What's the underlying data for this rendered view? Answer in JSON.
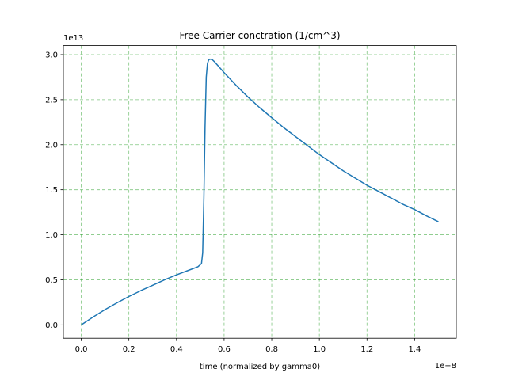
{
  "chart_data": {
    "type": "line",
    "title": "Free Carrier conctration (1/cm^3)",
    "xlabel": "time (normalized by gamma0)",
    "ylabel": "",
    "x_offset_text": "1e−8",
    "y_offset_text": "1e13",
    "x_scale": 1e-08,
    "y_scale": 10000000000000.0,
    "xlim": [
      -0.075,
      1.575
    ],
    "ylim": [
      -0.148,
      3.1
    ],
    "xticks": [
      0.0,
      0.2,
      0.4,
      0.6,
      0.8,
      1.0,
      1.2,
      1.4
    ],
    "xtick_labels": [
      "0.0",
      "0.2",
      "0.4",
      "0.6",
      "0.8",
      "1.0",
      "1.2",
      "1.4"
    ],
    "yticks": [
      0.0,
      0.5,
      1.0,
      1.5,
      2.0,
      2.5,
      3.0
    ],
    "ytick_labels": [
      "0.0",
      "0.5",
      "1.0",
      "1.5",
      "2.0",
      "2.5",
      "3.0"
    ],
    "grid": true,
    "grid_color": "#2ca02c",
    "series": [
      {
        "color": "#1f77b4",
        "x": [
          0.0,
          0.05,
          0.1,
          0.15,
          0.2,
          0.25,
          0.3,
          0.35,
          0.4,
          0.45,
          0.49,
          0.505,
          0.51,
          0.515,
          0.52,
          0.525,
          0.53,
          0.535,
          0.54,
          0.55,
          0.56,
          0.58,
          0.6,
          0.65,
          0.7,
          0.75,
          0.8,
          0.85,
          0.9,
          0.95,
          1.0,
          1.05,
          1.1,
          1.15,
          1.2,
          1.25,
          1.3,
          1.35,
          1.4,
          1.45,
          1.5
        ],
        "y": [
          0.0,
          0.0875,
          0.17,
          0.245,
          0.315,
          0.38,
          0.44,
          0.5,
          0.555,
          0.605,
          0.645,
          0.68,
          0.8,
          1.4,
          2.2,
          2.75,
          2.9,
          2.94,
          2.95,
          2.945,
          2.92,
          2.86,
          2.8,
          2.66,
          2.53,
          2.41,
          2.3,
          2.19,
          2.09,
          1.99,
          1.89,
          1.8,
          1.71,
          1.63,
          1.55,
          1.48,
          1.41,
          1.34,
          1.28,
          1.21,
          1.145
        ]
      }
    ]
  }
}
